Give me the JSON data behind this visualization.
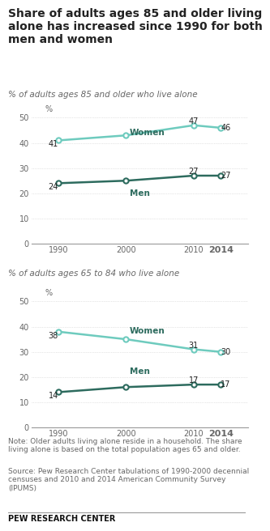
{
  "title_line1": "Share of adults ages 85 and older living",
  "title_line2": "alone has increased since 1990 for both",
  "title_line3": "men and women",
  "chart1_subtitle": "% of adults ages 85 and older who live alone",
  "chart2_subtitle": "% of adults ages 65 to 84 who live alone",
  "years": [
    1990,
    2000,
    2010,
    2014
  ],
  "chart1_women": [
    41,
    43,
    47,
    46
  ],
  "chart1_men": [
    24,
    25,
    27,
    27
  ],
  "chart2_women": [
    38,
    35,
    31,
    30
  ],
  "chart2_men": [
    14,
    16,
    17,
    17
  ],
  "women_color": "#6ecbbe",
  "men_color": "#2d6b5e",
  "note_text": "Note: Older adults living alone reside in a household. The share\nliving alone is based on the total population ages 65 and older.",
  "source_text": "Source: Pew Research Center tabulations of 1990-2000 decennial\ncensuses and 2010 and 2014 American Community Survey\n(IPUMS)",
  "pew_text": "PEW RESEARCH CENTER",
  "ylim": [
    0,
    54
  ],
  "yticks": [
    0,
    10,
    20,
    30,
    40,
    50
  ],
  "bg_color": "#ffffff",
  "title_fontsize": 10.0,
  "subtitle_fontsize": 7.5,
  "tick_fontsize": 7.0,
  "annotation_fontsize": 7.0,
  "label_fontsize": 7.5,
  "note_fontsize": 6.5,
  "grid_color": "#cccccc",
  "text_color": "#222222",
  "note_color": "#666666"
}
